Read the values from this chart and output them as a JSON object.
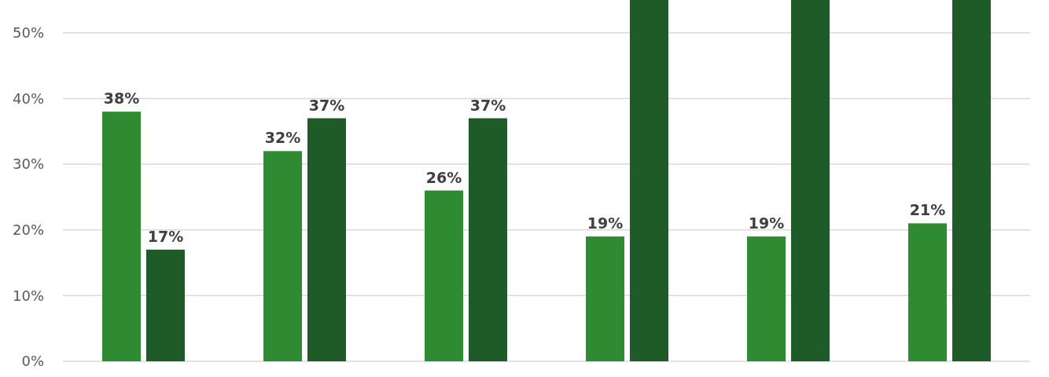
{
  "chart_data": {
    "type": "bar",
    "categories": [
      null,
      null,
      null,
      null,
      null,
      null
    ],
    "series": [
      {
        "color": "#2e8b32",
        "values": [
          38,
          32,
          26,
          19,
          19,
          21
        ],
        "value_labels": [
          "38%",
          "32%",
          "26%",
          "19%",
          "19%",
          "21%"
        ]
      },
      {
        "color": "#1f5b28",
        "values": [
          17,
          37,
          37,
          55,
          55,
          55
        ],
        "value_labels": [
          "17%",
          "37%",
          "37%",
          null,
          null,
          null
        ]
      }
    ],
    "ylim": [
      0,
      55
    ],
    "yticks": [
      {
        "value": 0,
        "label": "0%"
      },
      {
        "value": 10,
        "label": "10%"
      },
      {
        "value": 20,
        "label": "20%"
      },
      {
        "value": 30,
        "label": "30%"
      },
      {
        "value": 40,
        "label": "40%"
      },
      {
        "value": 50,
        "label": "50%"
      }
    ],
    "grid": "y"
  }
}
